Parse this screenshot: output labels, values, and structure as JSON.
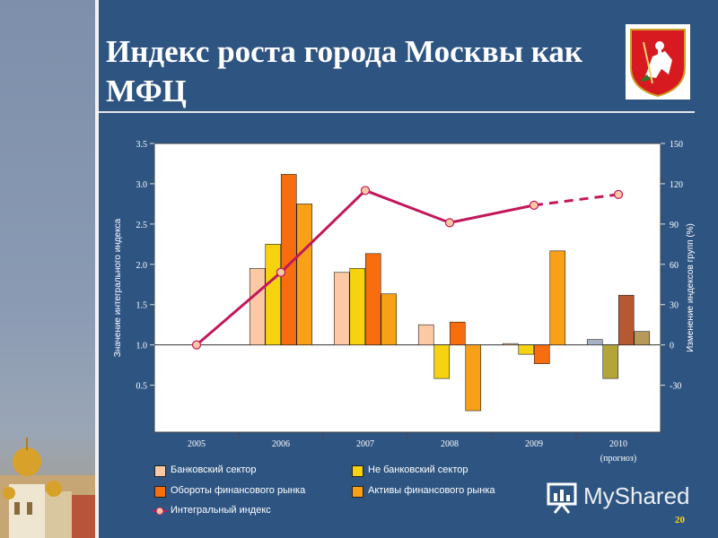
{
  "slide": {
    "title": "Индекс  роста города Москвы как МФЦ",
    "page_number": "20",
    "watermark": "MyShared",
    "accent_color": "#2e5582"
  },
  "chart_data": {
    "type": "bar",
    "categories": [
      "2005",
      "2006",
      "2007",
      "2008",
      "2009",
      "2010"
    ],
    "category_sublabels": [
      "",
      "",
      "",
      "",
      "",
      "(прогноз)"
    ],
    "ylabel_left": "Значение интегрального индекса",
    "ylabel_right": "Изменение индексов групп (%)",
    "y_left_ticks": [
      "0.5",
      "1.0",
      "1.5",
      "2.0",
      "2.5",
      "3.0",
      "3.5"
    ],
    "y_left_lim": [
      0.5,
      3.5
    ],
    "y_right_ticks": [
      "-30",
      "0",
      "30",
      "60",
      "90",
      "120",
      "150"
    ],
    "y_right_lim": [
      -30,
      150
    ],
    "y_right_min_display": -65,
    "baseline_value": 0,
    "bar_series": [
      {
        "name": "Банковский сектор",
        "color": "#fcc9a4",
        "values": [
          null,
          57,
          54,
          15,
          1,
          4
        ]
      },
      {
        "name": "Не банковский сектор",
        "color": "#f6d20f",
        "values": [
          null,
          75,
          57,
          -25,
          -7,
          -25
        ]
      },
      {
        "name": "Обороты финансового рынка",
        "color": "#f86d0e",
        "values": [
          null,
          127,
          68,
          17,
          -14,
          37
        ]
      },
      {
        "name": "Активы финансового рынка",
        "color": "#f7a018",
        "values": [
          null,
          105,
          38,
          -49,
          70,
          10
        ]
      }
    ],
    "bar_colors_2010": [
      "#a7b2c4",
      "#b5a43a",
      "#b45930",
      "#b79a5a"
    ],
    "line_series": {
      "name": "Интегральный индекс",
      "color": "#c2185b",
      "marker_fill": "#fcc9a4",
      "values": [
        0,
        54,
        115,
        91,
        104,
        112
      ],
      "dashed_from_index": 4
    },
    "legend_position": "bottom",
    "grid": false
  }
}
